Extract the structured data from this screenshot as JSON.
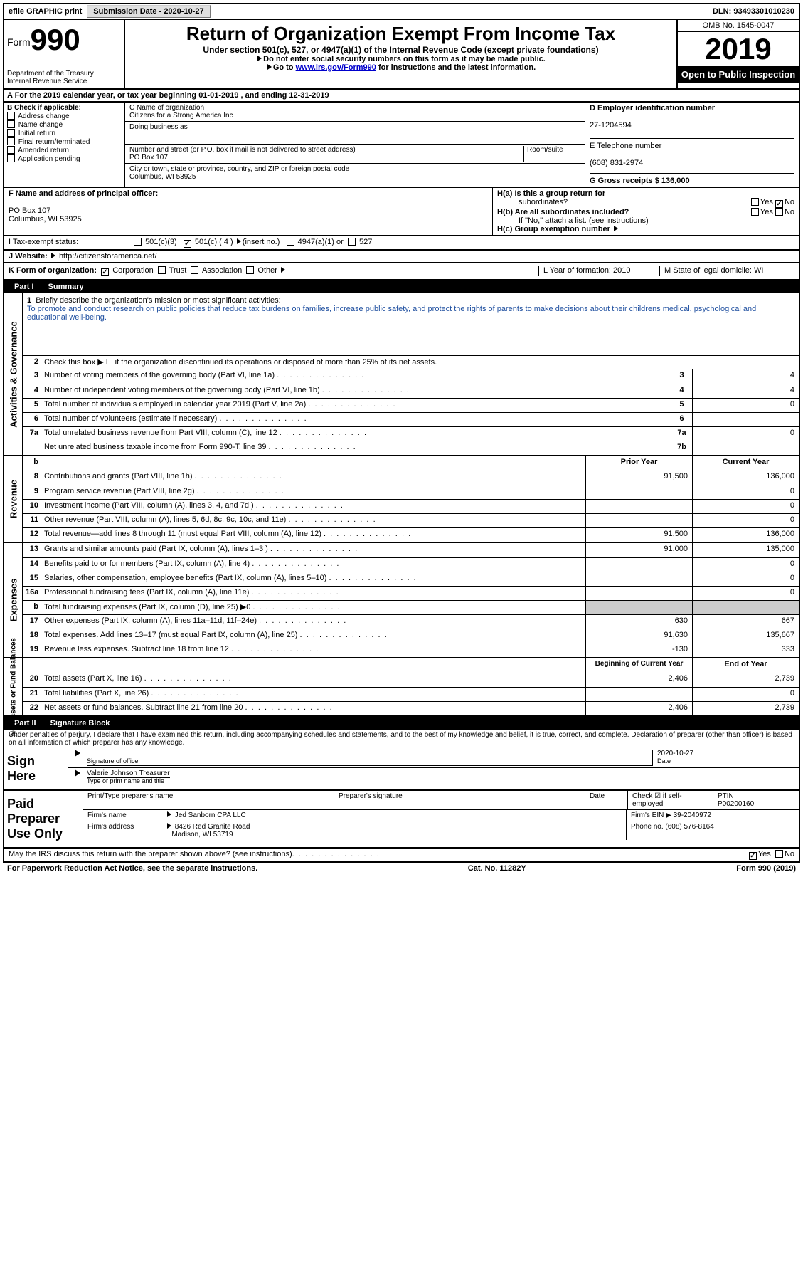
{
  "topbar": {
    "efile": "efile GRAPHIC print",
    "sub_label": "Submission Date - 2020-10-27",
    "dln": "DLN: 93493301010230"
  },
  "header": {
    "form_word": "Form",
    "form_num": "990",
    "dept1": "Department of the Treasury",
    "dept2": "Internal Revenue Service",
    "title": "Return of Organization Exempt From Income Tax",
    "sub": "Under section 501(c), 527, or 4947(a)(1) of the Internal Revenue Code (except private foundations)",
    "note1": "Do not enter social security numbers on this form as it may be made public.",
    "note2_a": "Go to ",
    "note2_link": "www.irs.gov/Form990",
    "note2_b": " for instructions and the latest information.",
    "omb": "OMB No. 1545-0047",
    "year": "2019",
    "inspect": "Open to Public Inspection"
  },
  "lineA": "A  For the 2019 calendar year, or tax year beginning 01-01-2019    , and ending 12-31-2019",
  "boxB": {
    "hdr": "B Check if applicable:",
    "items": [
      "Address change",
      "Name change",
      "Initial return",
      "Final return/terminated",
      "Amended return",
      "Application pending"
    ]
  },
  "boxC": {
    "name_lbl": "C Name of organization",
    "name": "Citizens for a Strong America Inc",
    "dba_lbl": "Doing business as",
    "addr_lbl": "Number and street (or P.O. box if mail is not delivered to street address)",
    "room_lbl": "Room/suite",
    "addr": "PO Box 107",
    "city_lbl": "City or town, state or province, country, and ZIP or foreign postal code",
    "city": "Columbus, WI  53925"
  },
  "boxD": {
    "ein_lbl": "D Employer identification number",
    "ein": "27-1204594",
    "tel_lbl": "E Telephone number",
    "tel": "(608) 831-2974",
    "gross_lbl": "G Gross receipts $ 136,000"
  },
  "boxF": {
    "lbl": "F  Name and address of principal officer:",
    "l1": "PO Box 107",
    "l2": "Columbus, WI  53925"
  },
  "boxH": {
    "ha": "H(a)  Is this a group return for",
    "ha2": "subordinates?",
    "hb": "H(b)  Are all subordinates included?",
    "hb2": "If \"No,\" attach a list. (see instructions)",
    "hc": "H(c)  Group exemption number",
    "yes": "Yes",
    "no": "No"
  },
  "lineI": {
    "lbl": "I    Tax-exempt status:",
    "o1": "501(c)(3)",
    "o2": "501(c) ( 4 )",
    "o2b": "(insert no.)",
    "o3": "4947(a)(1) or",
    "o4": "527"
  },
  "lineJ": {
    "lbl": "J   Website:",
    "val": "http://citizensforamerica.net/"
  },
  "lineK": {
    "lbl": "K Form of organization:",
    "o1": "Corporation",
    "o2": "Trust",
    "o3": "Association",
    "o4": "Other",
    "l_lbl": "L Year of formation: 2010",
    "m_lbl": "M State of legal domicile: WI"
  },
  "part1": {
    "tab": "Part I",
    "title": "Summary"
  },
  "gov": {
    "side": "Activities & Governance",
    "l1": "Briefly describe the organization's mission or most significant activities:",
    "mission": "To promote and conduct research on public policies that reduce tax burdens on families, increase public safety, and protect the rights of parents to make decisions about their childrens medical, psychological and educational well-being.",
    "l2": "Check this box ▶ ☐  if the organization discontinued its operations or disposed of more than 25% of its net assets.",
    "rows": [
      {
        "n": "3",
        "t": "Number of voting members of the governing body (Part VI, line 1a)",
        "b": "3",
        "v": "4"
      },
      {
        "n": "4",
        "t": "Number of independent voting members of the governing body (Part VI, line 1b)",
        "b": "4",
        "v": "4"
      },
      {
        "n": "5",
        "t": "Total number of individuals employed in calendar year 2019 (Part V, line 2a)",
        "b": "5",
        "v": "0"
      },
      {
        "n": "6",
        "t": "Total number of volunteers (estimate if necessary)",
        "b": "6",
        "v": ""
      },
      {
        "n": "7a",
        "t": "Total unrelated business revenue from Part VIII, column (C), line 12",
        "b": "7a",
        "v": "0"
      },
      {
        "n": "",
        "t": "Net unrelated business taxable income from Form 990-T, line 39",
        "b": "7b",
        "v": ""
      }
    ]
  },
  "rev": {
    "side": "Revenue",
    "hdr_prior": "Prior Year",
    "hdr_curr": "Current Year",
    "rows": [
      {
        "n": "8",
        "t": "Contributions and grants (Part VIII, line 1h)",
        "p": "91,500",
        "c": "136,000"
      },
      {
        "n": "9",
        "t": "Program service revenue (Part VIII, line 2g)",
        "p": "",
        "c": "0"
      },
      {
        "n": "10",
        "t": "Investment income (Part VIII, column (A), lines 3, 4, and 7d )",
        "p": "",
        "c": "0"
      },
      {
        "n": "11",
        "t": "Other revenue (Part VIII, column (A), lines 5, 6d, 8c, 9c, 10c, and 11e)",
        "p": "",
        "c": "0"
      },
      {
        "n": "12",
        "t": "Total revenue—add lines 8 through 11 (must equal Part VIII, column (A), line 12)",
        "p": "91,500",
        "c": "136,000"
      }
    ]
  },
  "exp": {
    "side": "Expenses",
    "rows": [
      {
        "n": "13",
        "t": "Grants and similar amounts paid (Part IX, column (A), lines 1–3 )",
        "p": "91,000",
        "c": "135,000"
      },
      {
        "n": "14",
        "t": "Benefits paid to or for members (Part IX, column (A), line 4)",
        "p": "",
        "c": "0"
      },
      {
        "n": "15",
        "t": "Salaries, other compensation, employee benefits (Part IX, column (A), lines 5–10)",
        "p": "",
        "c": "0"
      },
      {
        "n": "16a",
        "t": "Professional fundraising fees (Part IX, column (A), line 11e)",
        "p": "",
        "c": "0"
      },
      {
        "n": "b",
        "t": "Total fundraising expenses (Part IX, column (D), line 25) ▶0",
        "p": "GREY",
        "c": "GREY"
      },
      {
        "n": "17",
        "t": "Other expenses (Part IX, column (A), lines 11a–11d, 11f–24e)",
        "p": "630",
        "c": "667"
      },
      {
        "n": "18",
        "t": "Total expenses. Add lines 13–17 (must equal Part IX, column (A), line 25)",
        "p": "91,630",
        "c": "135,667"
      },
      {
        "n": "19",
        "t": "Revenue less expenses. Subtract line 18 from line 12",
        "p": "-130",
        "c": "333"
      }
    ]
  },
  "net": {
    "side": "Net Assets or Fund Balances",
    "hdr_beg": "Beginning of Current Year",
    "hdr_end": "End of Year",
    "rows": [
      {
        "n": "20",
        "t": "Total assets (Part X, line 16)",
        "p": "2,406",
        "c": "2,739"
      },
      {
        "n": "21",
        "t": "Total liabilities (Part X, line 26)",
        "p": "",
        "c": "0"
      },
      {
        "n": "22",
        "t": "Net assets or fund balances. Subtract line 21 from line 20",
        "p": "2,406",
        "c": "2,739"
      }
    ]
  },
  "part2": {
    "tab": "Part II",
    "title": "Signature Block",
    "decl": "Under penalties of perjury, I declare that I have examined this return, including accompanying schedules and statements, and to the best of my knowledge and belief, it is true, correct, and complete. Declaration of preparer (other than officer) is based on all information of which preparer has any knowledge."
  },
  "sign": {
    "here": "Sign Here",
    "sig_lbl": "Signature of officer",
    "date_lbl": "Date",
    "date": "2020-10-27",
    "name": "Valerie Johnson  Treasurer",
    "name_lbl": "Type or print name and title"
  },
  "prep": {
    "title": "Paid Preparer Use Only",
    "r1": {
      "a": "Print/Type preparer's name",
      "b": "Preparer's signature",
      "c": "Date",
      "d": "Check ☑ if self-employed",
      "e": "PTIN",
      "e2": "P00200160"
    },
    "r2": {
      "a": "Firm's name",
      "b": "Jed Sanborn CPA LLC",
      "c": "Firm's EIN ▶ 39-2040972"
    },
    "r3": {
      "a": "Firm's address",
      "b": "8426 Red Granite Road",
      "c": "Phone no. (608) 576-8164"
    },
    "r3b": "Madison, WI  53719"
  },
  "footer": {
    "q": "May the IRS discuss this return with the preparer shown above? (see instructions)",
    "yes": "Yes",
    "no": "No",
    "pra": "For Paperwork Reduction Act Notice, see the separate instructions.",
    "cat": "Cat. No. 11282Y",
    "form": "Form 990 (2019)"
  }
}
